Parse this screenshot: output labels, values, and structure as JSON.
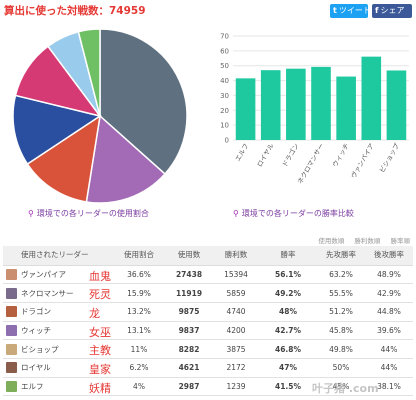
{
  "header": {
    "title": "算出に使った対戦数：74959",
    "tweet_label": "ツイート",
    "share_label": "シェア",
    "tweet_glyph": "t",
    "share_glyph": "f"
  },
  "colors": {
    "accent": "#e53935",
    "bar": "#1fc9a0",
    "caption": "#7a3ca0"
  },
  "captions": {
    "usage": "環境での各リーダーの使用割合",
    "winrate": "環境での各リーダーの勝率比較"
  },
  "legend": {
    "items": [
      "使用数順",
      "勝利数順",
      "勝率順"
    ]
  },
  "chart_data": [
    {
      "type": "pie",
      "categories": [
        "ヴァンパイア",
        "ネクロマンサー",
        "ドラゴン",
        "ウィッチ",
        "ビショップ",
        "ロイヤル",
        "エルフ"
      ],
      "values": [
        36.6,
        15.9,
        13.2,
        13.1,
        11,
        6.2,
        4
      ],
      "colors": [
        "#5f7180",
        "#a36bb5",
        "#d9533a",
        "#2b4fa0",
        "#d63a74",
        "#99ccec",
        "#6fbf64"
      ]
    },
    {
      "type": "bar",
      "categories": [
        "エルフ",
        "ロイヤル",
        "ドラゴン",
        "ネクロマンサー",
        "ウィッチ",
        "ヴァンパイア",
        "ビショップ"
      ],
      "values": [
        41.5,
        47,
        48,
        49.2,
        42.7,
        56.1,
        46.8
      ],
      "ylim": [
        0,
        70
      ],
      "yticks": [
        0,
        10,
        20,
        30,
        40,
        50,
        60,
        70
      ],
      "grid": true
    }
  ],
  "table": {
    "headers": [
      "使用されたリーダー",
      "使用割合",
      "使用数",
      "勝利数",
      "勝率",
      "先攻勝率",
      "後攻勝率"
    ],
    "rows": [
      {
        "leader": "ヴァンパイア",
        "cn": "血鬼",
        "usage": "36.6%",
        "count": "27438",
        "wins": "15394",
        "winrate": "56.1%",
        "first": "63.2%",
        "second": "48.9%",
        "avatar": "#c98f6e"
      },
      {
        "leader": "ネクロマンサー",
        "cn": "死灵",
        "usage": "15.9%",
        "count": "11919",
        "wins": "5859",
        "winrate": "49.2%",
        "first": "55.5%",
        "second": "42.9%",
        "avatar": "#7a6a8c"
      },
      {
        "leader": "ドラゴン",
        "cn": "龙",
        "usage": "13.2%",
        "count": "9875",
        "wins": "4740",
        "winrate": "48%",
        "first": "51.2%",
        "second": "44.8%",
        "avatar": "#b5603f"
      },
      {
        "leader": "ウィッチ",
        "cn": "女巫",
        "usage": "13.1%",
        "count": "9837",
        "wins": "4200",
        "winrate": "42.7%",
        "first": "45.8%",
        "second": "39.6%",
        "avatar": "#8d6fb0"
      },
      {
        "leader": "ビショップ",
        "cn": "主教",
        "usage": "11%",
        "count": "8282",
        "wins": "3875",
        "winrate": "46.8%",
        "first": "49.8%",
        "second": "44%",
        "avatar": "#c9a97a"
      },
      {
        "leader": "ロイヤル",
        "cn": "皇家",
        "usage": "6.2%",
        "count": "4621",
        "wins": "2172",
        "winrate": "47%",
        "first": "50%",
        "second": "44%",
        "avatar": "#8a5c4a"
      },
      {
        "leader": "エルフ",
        "cn": "妖精",
        "usage": "4%",
        "count": "2987",
        "wins": "1239",
        "winrate": "41.5%",
        "first": "45%",
        "second": "38.1%",
        "avatar": "#7fae5a"
      }
    ]
  },
  "watermark": "叶子猪 .com"
}
